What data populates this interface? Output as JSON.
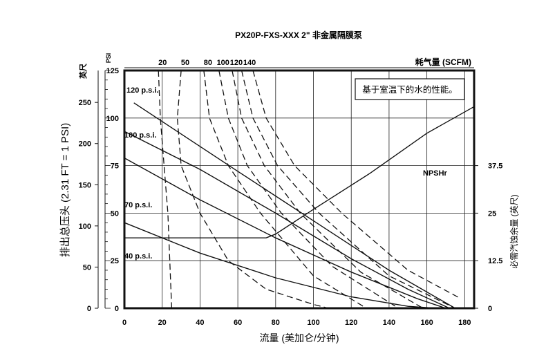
{
  "chart_data": {
    "type": "line",
    "title": "PX20P-FXS-XXX 2\" 非金属隔膜泵",
    "annotation": "基于室温下的水的性能。",
    "xlabel": "流量 (美加仑/分钟)",
    "xlim": [
      0,
      185
    ],
    "x_ticks": [
      "0",
      "20",
      "40",
      "60",
      "80",
      "100",
      "120",
      "140",
      "160",
      "180"
    ],
    "y_left_feet": {
      "label": "英尺",
      "ticks": [
        "0",
        "50",
        "100",
        "150",
        "200",
        "250"
      ],
      "ylim": [
        0,
        288.75
      ]
    },
    "y_left_psi": {
      "label": "PSI",
      "ticks": [
        "0",
        "25",
        "50",
        "75",
        "100",
        "125"
      ],
      "ylim": [
        0,
        125
      ]
    },
    "y_left_title": "排出总压头 (2.31 FT = 1 PSI)",
    "y_right": {
      "label": "必需汽蚀余量 (英尺)",
      "ticks": [
        "0",
        "12.5",
        "25",
        "37.5"
      ],
      "ylim": [
        0,
        62.5
      ]
    },
    "air_consumption": {
      "label": "耗气量 (SCFM)",
      "ticks": [
        "20",
        "50",
        "80",
        "100",
        "120",
        "140"
      ]
    },
    "series": [
      {
        "name": "120 p.s.i.",
        "x": [
          5,
          60,
          100,
          140,
          175
        ],
        "y": [
          108,
          72,
          46,
          20,
          0
        ]
      },
      {
        "name": "100 p.s.i.",
        "x": [
          0,
          40,
          80,
          120,
          150,
          172
        ],
        "y": [
          93,
          73,
          50,
          26,
          10,
          0
        ]
      },
      {
        "name": "70 p.s.i.",
        "x": [
          0,
          40,
          80,
          120,
          155,
          170
        ],
        "y": [
          79,
          57,
          37,
          19,
          5,
          0
        ]
      },
      {
        "name": "40 p.s.i.",
        "x": [
          0,
          40,
          80,
          120,
          150,
          165
        ],
        "y": [
          45,
          29,
          16,
          6,
          1,
          0
        ]
      },
      {
        "name": "NPSHr",
        "axis": "right",
        "x": [
          0,
          75,
          80,
          100,
          130,
          160,
          185
        ],
        "y": [
          18.5,
          18.5,
          19.5,
          26,
          35.5,
          46,
          53
        ]
      }
    ],
    "air_curves": [
      {
        "scfm": "20",
        "x": [
          18,
          19,
          21,
          23,
          25
        ],
        "y": [
          125,
          100,
          75,
          50,
          0
        ]
      },
      {
        "scfm": "50",
        "x": [
          30,
          28,
          30,
          40,
          55,
          75,
          100,
          108
        ],
        "y": [
          125,
          100,
          75,
          50,
          25,
          10,
          2,
          0
        ]
      },
      {
        "scfm": "80",
        "x": [
          42,
          45,
          55,
          72,
          100,
          128
        ],
        "y": [
          125,
          100,
          75,
          50,
          17,
          0
        ]
      },
      {
        "scfm": "100",
        "x": [
          50,
          55,
          65,
          83,
          110,
          145
        ],
        "y": [
          125,
          100,
          75,
          50,
          22,
          0
        ]
      },
      {
        "scfm": "120",
        "x": [
          57,
          62,
          74,
          93,
          125,
          158
        ],
        "y": [
          125,
          100,
          75,
          50,
          19,
          0
        ]
      },
      {
        "scfm": "140",
        "x": [
          62,
          68,
          81,
          103,
          140,
          175
        ],
        "y": [
          125,
          100,
          75,
          50,
          17,
          0
        ]
      },
      {
        "scfm": "140",
        "x": [
          68,
          75,
          90,
          115,
          150,
          178
        ],
        "y": [
          125,
          100,
          75,
          50,
          20,
          5
        ]
      }
    ],
    "grid": true
  }
}
